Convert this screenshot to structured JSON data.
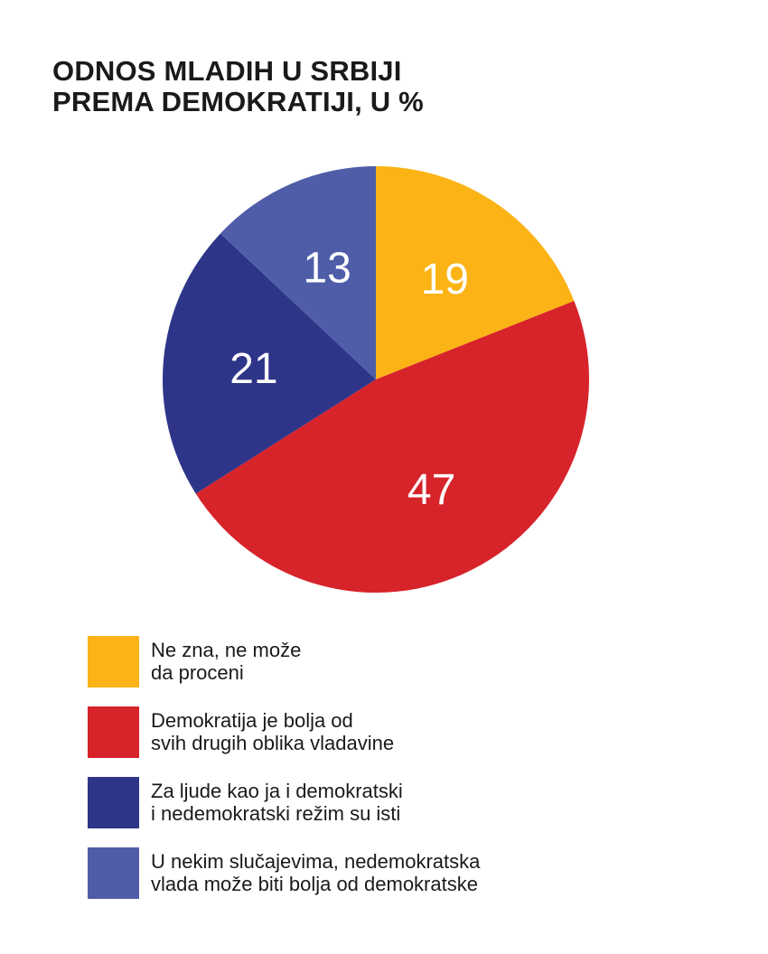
{
  "title": {
    "line1": "ODNOS MLADIH U SRBIJI",
    "line2": "PREMA DEMOKRATIJI, U %"
  },
  "chart_data": {
    "type": "pie",
    "title": "ODNOS MLADIH U SRBIJI PREMA DEMOKRATIJI, U %",
    "start_angle_deg": 0,
    "direction": "clockwise",
    "slices": [
      {
        "label": "Ne zna, ne može da proceni",
        "value": 19,
        "color": "#FBB316"
      },
      {
        "label": "Demokratija je bolja od svih drugih oblika vladavine",
        "value": 47,
        "color": "#D7232A"
      },
      {
        "label": "Za ljude kao ja i demokratski i nedemokratski režim su isti",
        "value": 21,
        "color": "#2E3589"
      },
      {
        "label": "U nekim slučajevima, nedemokratska vlada može biti bolja od demokratske",
        "value": 13,
        "color": "#4F5DA8"
      }
    ],
    "data_label_color": "#FFFFFF",
    "legend_position": "bottom"
  },
  "legend": {
    "items": [
      {
        "line1": "Ne zna, ne može",
        "line2": "da proceni"
      },
      {
        "line1": "Demokratija je bolja od",
        "line2": "svih drugih oblika vladavine"
      },
      {
        "line1": "Za ljude kao ja i demokratski",
        "line2": "i nedemokratski režim su isti"
      },
      {
        "line1": "U nekim slučajevima, nedemokratska",
        "line2": "vlada može biti bolja od demokratske"
      }
    ]
  }
}
